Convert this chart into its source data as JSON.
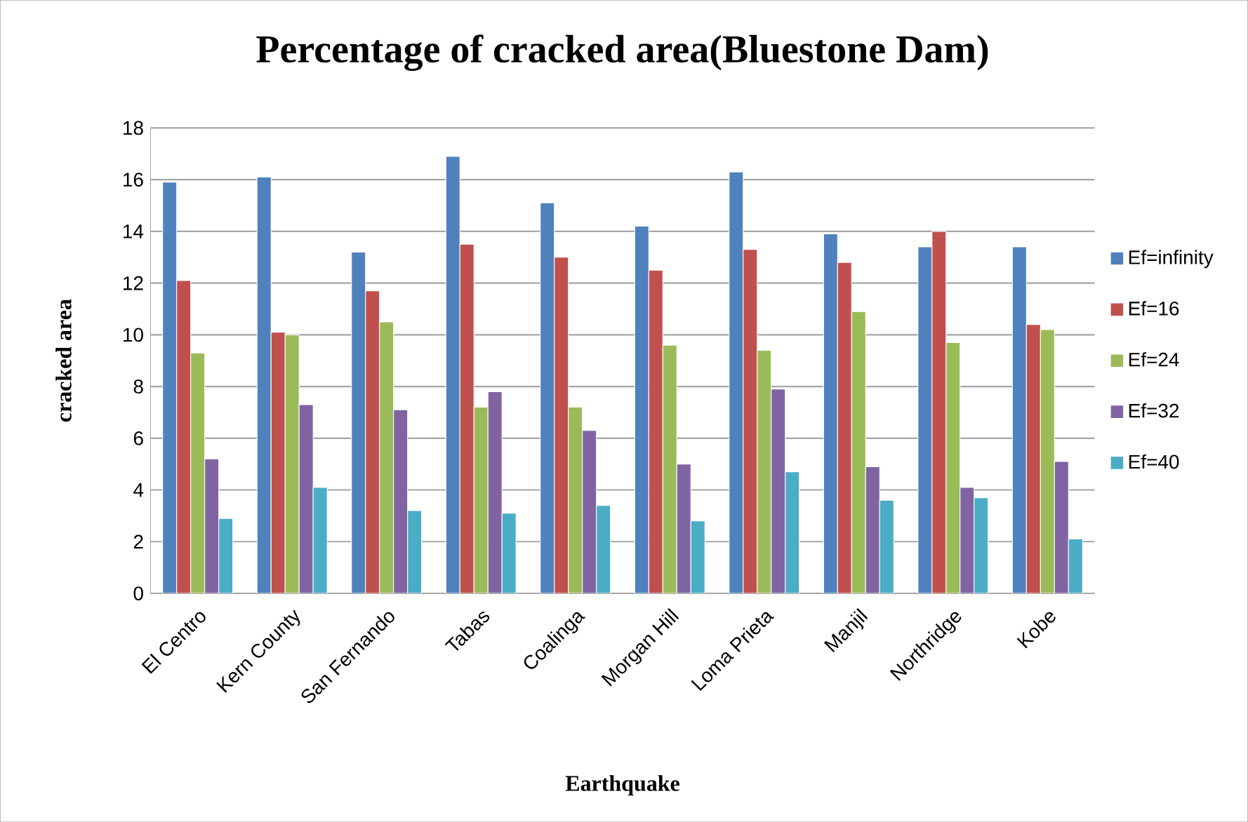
{
  "chart_data": {
    "type": "bar",
    "title": "Percentage of cracked area(Bluestone Dam)",
    "xlabel": "Earthquake",
    "ylabel": "cracked area",
    "categories": [
      "El Centro",
      "Kern County",
      "San Fernando",
      "Tabas",
      "Coalinga",
      "Morgan Hill",
      "Loma Prieta",
      "Manjil",
      "Northridge",
      "Kobe"
    ],
    "series": [
      {
        "name": "Ef=infinity",
        "color": "#4f81bd",
        "values": [
          15.9,
          16.1,
          13.2,
          16.9,
          15.1,
          14.2,
          16.3,
          13.9,
          13.4,
          13.4
        ]
      },
      {
        "name": "Ef=16",
        "color": "#c0504d",
        "values": [
          12.1,
          10.1,
          11.7,
          13.5,
          13.0,
          12.5,
          13.3,
          12.8,
          14.0,
          10.4
        ]
      },
      {
        "name": "Ef=24",
        "color": "#9bbb59",
        "values": [
          9.3,
          10.0,
          10.5,
          7.2,
          7.2,
          9.6,
          9.4,
          10.9,
          9.7,
          10.2
        ]
      },
      {
        "name": "Ef=32",
        "color": "#8064a2",
        "values": [
          5.2,
          7.3,
          7.1,
          7.8,
          6.3,
          5.0,
          7.9,
          4.9,
          4.1,
          5.1
        ]
      },
      {
        "name": "Ef=40",
        "color": "#4bacc6",
        "values": [
          2.9,
          4.1,
          3.2,
          3.1,
          3.4,
          2.8,
          4.7,
          3.6,
          3.7,
          2.1
        ]
      }
    ],
    "ylim": [
      0,
      18
    ],
    "yticks": [
      0,
      2,
      4,
      6,
      8,
      10,
      12,
      14,
      16,
      18
    ],
    "grid": "y",
    "legend": "right"
  }
}
